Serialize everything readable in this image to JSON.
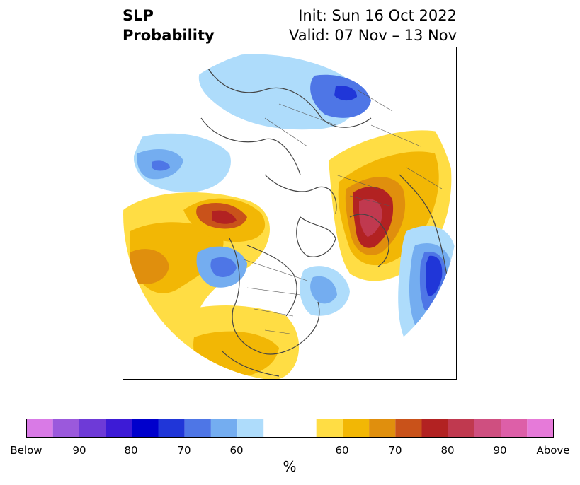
{
  "title": {
    "left_line1": "SLP",
    "left_line2": "Probability",
    "right_line1": "Init: Sun 16 Oct 2022",
    "right_line2": "Valid: 07 Nov – 13 Nov"
  },
  "map": {
    "projection": "north-polar-stereographic",
    "legend_placement": "bottom"
  },
  "colorbar": {
    "unit": "%",
    "colors": [
      "#d97ae6",
      "#9b59dc",
      "#6e3ad7",
      "#3d1bd6",
      "#0000cc",
      "#2036d8",
      "#4e76e6",
      "#74adf0",
      "#aedcfb",
      "#ffffff",
      "#ffdd44",
      "#f2b705",
      "#e08f0d",
      "#c9521a",
      "#b22222",
      "#c0394f",
      "#cf4f80",
      "#dd5fa8",
      "#e67ad9"
    ],
    "tick_labels": [
      "Below",
      "90",
      "80",
      "70",
      "60",
      "60",
      "70",
      "80",
      "90",
      "Above"
    ]
  }
}
